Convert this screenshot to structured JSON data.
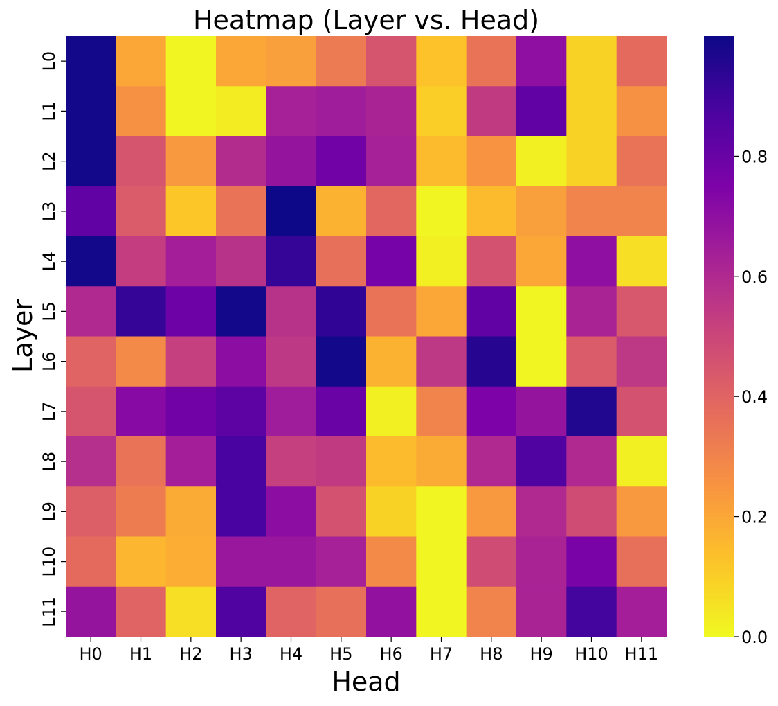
{
  "chart_data": {
    "type": "heatmap",
    "title": "Heatmap (Layer vs. Head)",
    "xlabel": "Head",
    "ylabel": "Layer",
    "x_categories": [
      "H0",
      "H1",
      "H2",
      "H3",
      "H4",
      "H5",
      "H6",
      "H7",
      "H8",
      "H9",
      "H10",
      "H11"
    ],
    "y_categories": [
      "L0",
      "L1",
      "L2",
      "L3",
      "L4",
      "L5",
      "L6",
      "L7",
      "L8",
      "L9",
      "L10",
      "L11"
    ],
    "values": [
      [
        0.99,
        0.2,
        0.01,
        0.2,
        0.22,
        0.33,
        0.45,
        0.13,
        0.35,
        0.7,
        0.09,
        0.38
      ],
      [
        0.99,
        0.26,
        0.01,
        0.03,
        0.63,
        0.65,
        0.62,
        0.1,
        0.54,
        0.82,
        0.09,
        0.26
      ],
      [
        0.99,
        0.45,
        0.24,
        0.59,
        0.68,
        0.78,
        0.63,
        0.15,
        0.25,
        0.02,
        0.09,
        0.35
      ],
      [
        0.82,
        0.43,
        0.12,
        0.35,
        1.0,
        0.17,
        0.39,
        0.01,
        0.15,
        0.22,
        0.3,
        0.3
      ],
      [
        0.99,
        0.53,
        0.64,
        0.57,
        0.92,
        0.36,
        0.77,
        0.02,
        0.46,
        0.2,
        0.7,
        0.06
      ],
      [
        0.6,
        0.92,
        0.79,
        0.99,
        0.57,
        0.93,
        0.35,
        0.2,
        0.82,
        0.01,
        0.62,
        0.44
      ],
      [
        0.4,
        0.28,
        0.52,
        0.71,
        0.55,
        0.99,
        0.17,
        0.55,
        0.95,
        0.01,
        0.43,
        0.55
      ],
      [
        0.45,
        0.72,
        0.78,
        0.83,
        0.65,
        0.8,
        0.02,
        0.3,
        0.75,
        0.68,
        0.96,
        0.46
      ],
      [
        0.58,
        0.35,
        0.64,
        0.88,
        0.52,
        0.54,
        0.15,
        0.19,
        0.6,
        0.86,
        0.6,
        0.02
      ],
      [
        0.42,
        0.32,
        0.19,
        0.88,
        0.71,
        0.46,
        0.09,
        0.01,
        0.24,
        0.6,
        0.48,
        0.24
      ],
      [
        0.38,
        0.16,
        0.18,
        0.67,
        0.67,
        0.63,
        0.28,
        0.01,
        0.48,
        0.62,
        0.76,
        0.36
      ],
      [
        0.68,
        0.4,
        0.06,
        0.86,
        0.4,
        0.36,
        0.69,
        0.01,
        0.3,
        0.62,
        0.89,
        0.64
      ]
    ],
    "colormap": "plasma",
    "colormap_reversed": true,
    "vmin": 0.0,
    "vmax": 1.0,
    "colorbar_ticks": [
      "0.0",
      "0.2",
      "0.4",
      "0.6",
      "0.8"
    ],
    "colorbar_tick_values": [
      0.0,
      0.2,
      0.4,
      0.6,
      0.8
    ],
    "colorbar_placement": "right",
    "grid": false
  }
}
